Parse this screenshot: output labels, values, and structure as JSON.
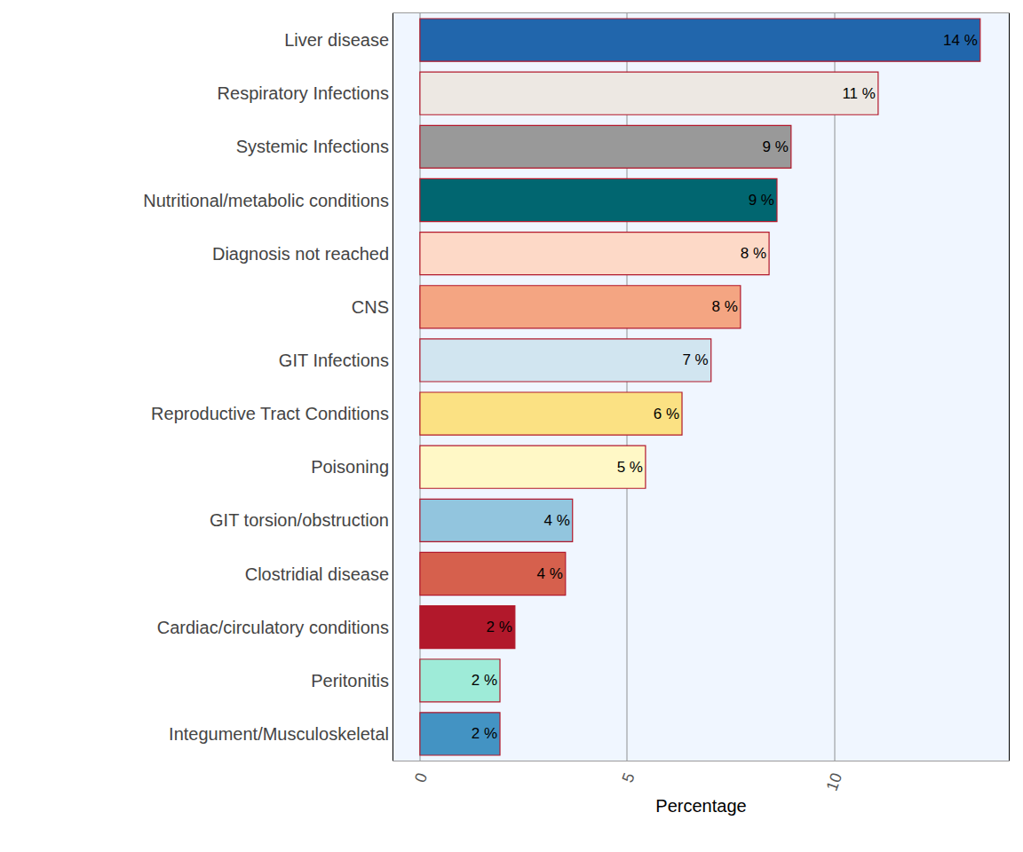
{
  "chart_data": {
    "type": "bar",
    "orientation": "horizontal",
    "x_label": "Percentage",
    "categories": [
      "Liver disease",
      "Respiratory Infections",
      "Systemic Infections",
      "Nutritional/metabolic conditions",
      "Diagnosis not reached",
      "CNS",
      "GIT Infections",
      "Reproductive Tract Conditions",
      "Poisoning",
      "GIT torsion/obstruction",
      "Clostridial disease",
      "Cardiac/circulatory conditions",
      "Peritonitis",
      "Integument/Musculoskeletal"
    ],
    "values": [
      13.51,
      11.05,
      8.95,
      8.61,
      8.42,
      7.73,
      7.02,
      6.32,
      5.44,
      3.68,
      3.51,
      2.29,
      1.93,
      1.93
    ],
    "value_labels": [
      "14 %",
      "11 %",
      "9 %",
      "9 %",
      "8 %",
      "8 %",
      "7 %",
      "6 %",
      "5 %",
      "4 %",
      "4 %",
      "2 %",
      "2 %",
      "2 %"
    ],
    "colors": [
      "#2166ac",
      "#ede8e3",
      "#999999",
      "#016670",
      "#fdd9c7",
      "#f4a582",
      "#d1e5f0",
      "#fbe183",
      "#fff8c6",
      "#92c5de",
      "#d6604d",
      "#b2182b",
      "#9eebd8",
      "#4393c3"
    ],
    "xlim": [
      -0.64,
      14.2
    ],
    "xticks": [
      0,
      5,
      10
    ],
    "grid": true,
    "data_labels": true
  }
}
